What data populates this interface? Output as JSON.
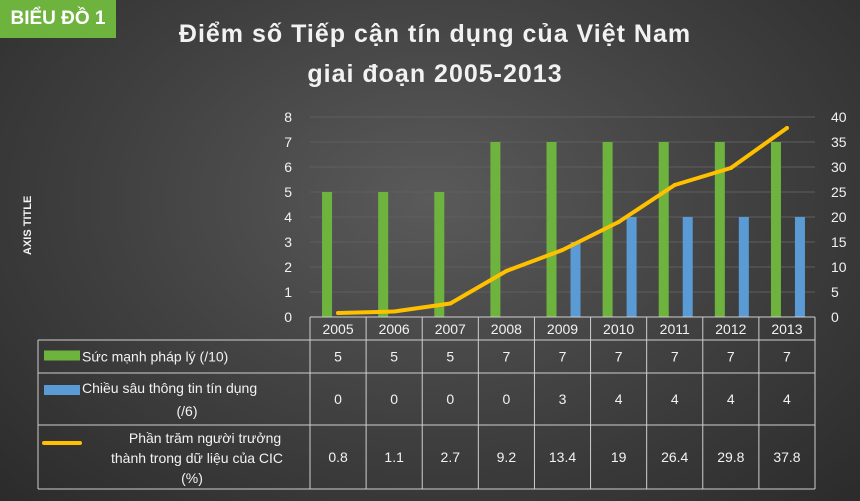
{
  "badge": "BIỂU ĐỒ 1",
  "chart_data": {
    "type": "bar",
    "title_line1": "Điểm số Tiếp cận tín dụng của Việt Nam",
    "title_line2": "giai đoạn 2005-2013",
    "ylabel": "AXIS TITLE",
    "categories": [
      "2005",
      "2006",
      "2007",
      "2008",
      "2009",
      "2010",
      "2011",
      "2012",
      "2013"
    ],
    "ylim": [
      0,
      8
    ],
    "y2lim": [
      0,
      40
    ],
    "yticks": [
      "0",
      "1",
      "2",
      "3",
      "4",
      "5",
      "6",
      "7",
      "8"
    ],
    "y2ticks": [
      "0",
      "5",
      "10",
      "15",
      "20",
      "25",
      "30",
      "35",
      "40"
    ],
    "series": [
      {
        "name_line1": "Sức mạnh pháp lý (/10)",
        "name_line2": "",
        "kind": "bar",
        "axis": "left",
        "color": "#6fb33f",
        "values": [
          5,
          5,
          5,
          7,
          7,
          7,
          7,
          7,
          7
        ],
        "labels": [
          "5",
          "5",
          "5",
          "7",
          "7",
          "7",
          "7",
          "7",
          "7"
        ]
      },
      {
        "name_line1": "Chiều sâu thông tin tín dụng",
        "name_line2": "(/6)",
        "kind": "bar",
        "axis": "left",
        "color": "#5b9bd5",
        "values": [
          0,
          0,
          0,
          0,
          3,
          4,
          4,
          4,
          4
        ],
        "labels": [
          "0",
          "0",
          "0",
          "0",
          "3",
          "4",
          "4",
          "4",
          "4"
        ]
      },
      {
        "name_line1": "Phần trăm người trưởng",
        "name_line2": "thành trong dữ liệu của CIC",
        "name_line3": "(%)",
        "kind": "line",
        "axis": "right",
        "color": "#ffc000",
        "values": [
          0.8,
          1.1,
          2.7,
          9.2,
          13.4,
          19,
          26.4,
          29.8,
          37.8
        ],
        "labels": [
          "0.8",
          "1.1",
          "2.7",
          "9.2",
          "13.4",
          "19",
          "26.4",
          "29.8",
          "37.8"
        ]
      }
    ]
  }
}
